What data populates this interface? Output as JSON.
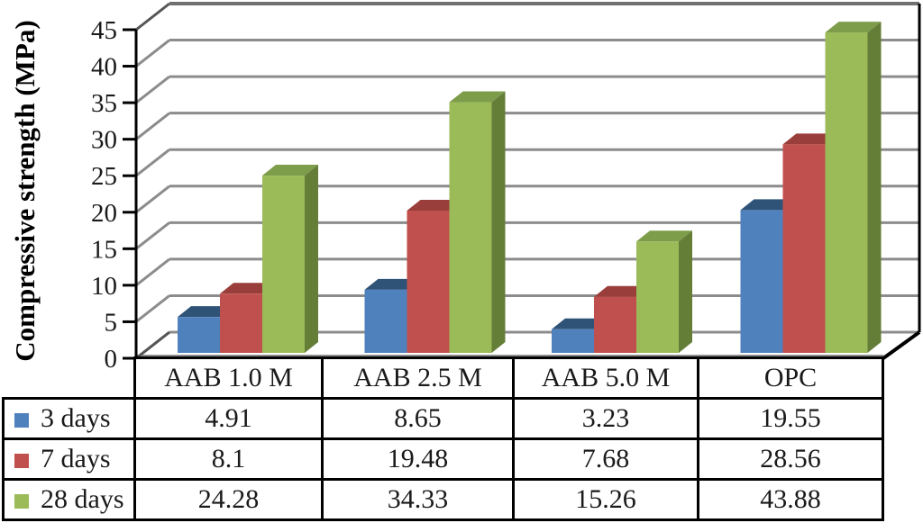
{
  "chart_data": {
    "type": "bar",
    "projection": "3d",
    "title": "",
    "xlabel": "",
    "ylabel": "Compressive strength (MPa)",
    "categories": [
      "AAB 1.0 M",
      "AAB 2.5 M",
      "AAB 5.0 M",
      "OPC"
    ],
    "series": [
      {
        "name": "3 days",
        "color": "#4F81BD",
        "color_top": "#2F5377",
        "color_side": "#3A659C",
        "values": [
          4.91,
          8.65,
          3.23,
          19.55
        ]
      },
      {
        "name": "7 days",
        "color": "#C0504D",
        "color_top": "#9A3E3B",
        "color_side": "#8E3A37",
        "values": [
          8.1,
          19.48,
          7.68,
          28.56
        ]
      },
      {
        "name": "28 days",
        "color": "#9BBB59",
        "color_top": "#7E9D4B",
        "color_side": "#647E38",
        "values": [
          24.28,
          34.33,
          15.26,
          43.88
        ]
      }
    ],
    "ylim": [
      0,
      45
    ],
    "ytick_step": 5,
    "yticks": [
      0,
      5,
      10,
      15,
      20,
      25,
      30,
      35,
      40,
      45
    ],
    "grid": true,
    "legend_position": "table-left",
    "colors": {
      "gridline": "#8c8c8c",
      "wall_top_line": "#707070",
      "axis": "#000000",
      "text": "#1a1a1a"
    }
  }
}
